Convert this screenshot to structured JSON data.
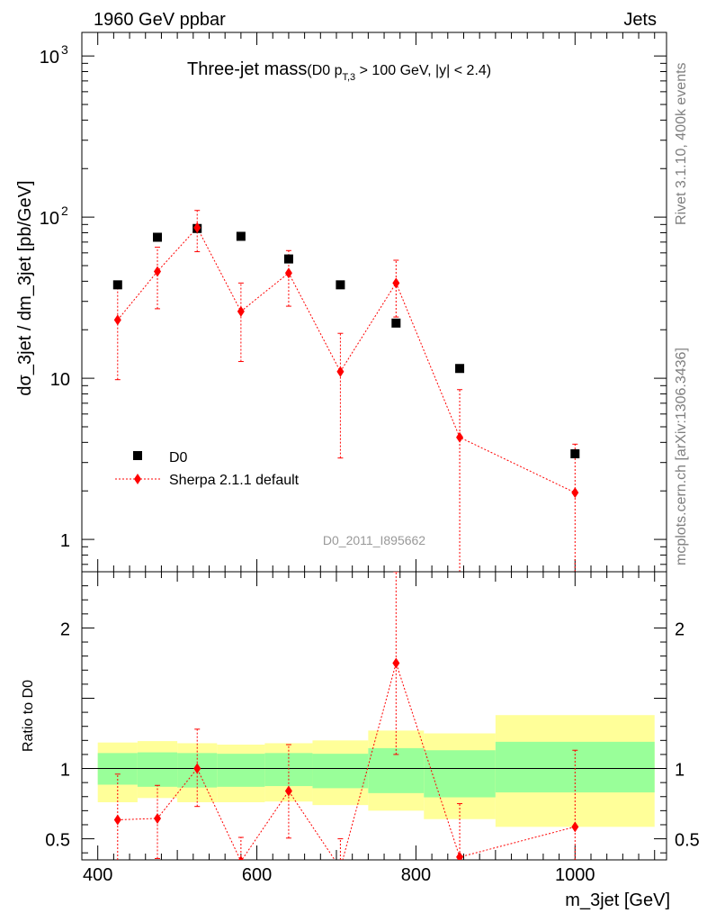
{
  "header": {
    "left": "1960 GeV ppbar",
    "right": "Jets"
  },
  "side_labels": {
    "rivet": "Rivet 3.1.10,  400k events",
    "source": "mcplots.cern.ch [arXiv:1306.3436]"
  },
  "chart_data": [
    {
      "type": "scatter",
      "title": "Three-jet mass",
      "title_detail": {
        "prefix": "(D0 p",
        "sub": "T,3",
        "suffix": " > 100 GeV, |y| < 2.4)"
      },
      "ylabel": "dσ_3jet / dm_3jet [pb/GeV]",
      "yscale": "log",
      "ylim": [
        0.63,
        1400
      ],
      "xlim": [
        380,
        1115
      ],
      "yticks": [
        {
          "value": 1,
          "label": "1"
        },
        {
          "value": 10,
          "label": "10"
        },
        {
          "value": 100,
          "base": "10",
          "exp": "2"
        },
        {
          "value": 1000,
          "base": "10",
          "exp": "3"
        }
      ],
      "watermark": "D0_2011_I895662",
      "legend": {
        "placement": "bottom-left",
        "entries": [
          "D0",
          "Sherpa 2.1.1 default"
        ]
      },
      "series": [
        {
          "name": "D0",
          "marker": "square",
          "color": "#000000",
          "x": [
            425,
            475,
            525,
            580,
            640,
            705,
            775,
            855,
            1000
          ],
          "y": [
            38,
            75,
            85,
            76,
            55,
            38,
            22,
            11.5,
            3.4
          ]
        },
        {
          "name": "Sherpa 2.1.1 default",
          "marker": "diamond",
          "color": "#ff0000",
          "x": [
            425,
            475,
            525,
            580,
            640,
            705,
            775,
            855,
            1000
          ],
          "y": [
            23,
            46,
            86,
            26,
            45,
            11,
            39,
            4.3,
            1.95
          ],
          "ylow": [
            9.8,
            27,
            61,
            12.7,
            28,
            3.2,
            24,
            0.1,
            0.1
          ],
          "yhigh": [
            36,
            65,
            110,
            39,
            62,
            19,
            54,
            8.5,
            3.9
          ]
        }
      ]
    },
    {
      "type": "scatter",
      "ylabel": "Ratio to D0",
      "xlabel": "m_3jet [GeV]",
      "ylim": [
        0.35,
        2.4
      ],
      "xlim": [
        380,
        1115
      ],
      "yticks": [
        0.5,
        1,
        2
      ],
      "xticks": [
        400,
        600,
        800,
        1000
      ],
      "reference_line": 1,
      "bands": {
        "colors": {
          "outer": "#ffff99",
          "inner": "#99ff99"
        },
        "bins": [
          {
            "x1": 400,
            "x2": 450,
            "outer_low": 0.76,
            "outer_high": 1.185,
            "inner_low": 0.885,
            "inner_high": 1.11
          },
          {
            "x1": 450,
            "x2": 500,
            "outer_low": 0.79,
            "outer_high": 1.195,
            "inner_low": 0.87,
            "inner_high": 1.115
          },
          {
            "x1": 500,
            "x2": 550,
            "outer_low": 0.76,
            "outer_high": 1.18,
            "inner_low": 0.865,
            "inner_high": 1.11
          },
          {
            "x1": 550,
            "x2": 610,
            "outer_low": 0.76,
            "outer_high": 1.17,
            "inner_low": 0.87,
            "inner_high": 1.105
          },
          {
            "x1": 610,
            "x2": 670,
            "outer_low": 0.765,
            "outer_high": 1.18,
            "inner_low": 0.875,
            "inner_high": 1.11
          },
          {
            "x1": 670,
            "x2": 740,
            "outer_low": 0.74,
            "outer_high": 1.2,
            "inner_low": 0.86,
            "inner_high": 1.105
          },
          {
            "x1": 740,
            "x2": 810,
            "outer_low": 0.7,
            "outer_high": 1.27,
            "inner_low": 0.825,
            "inner_high": 1.145
          },
          {
            "x1": 810,
            "x2": 900,
            "outer_low": 0.64,
            "outer_high": 1.25,
            "inner_low": 0.795,
            "inner_high": 1.13
          },
          {
            "x1": 900,
            "x2": 1100,
            "outer_low": 0.585,
            "outer_high": 1.38,
            "inner_low": 0.83,
            "inner_high": 1.19
          }
        ]
      },
      "series": [
        {
          "name": "Sherpa 2.1.1 default",
          "marker": "diamond",
          "color": "#ff0000",
          "x": [
            425,
            475,
            525,
            580,
            640,
            705,
            775,
            855,
            1000
          ],
          "y": [
            0.635,
            0.645,
            1.0,
            0.34,
            0.84,
            0.29,
            1.75,
            0.37,
            0.585
          ],
          "ylow": [
            0.26,
            0.36,
            0.73,
            0.17,
            0.505,
            0.085,
            1.1,
            0.01,
            0.03
          ],
          "yhigh": [
            0.96,
            0.88,
            1.28,
            0.51,
            1.17,
            0.5,
            2.4,
            0.75,
            1.13
          ]
        }
      ]
    }
  ]
}
